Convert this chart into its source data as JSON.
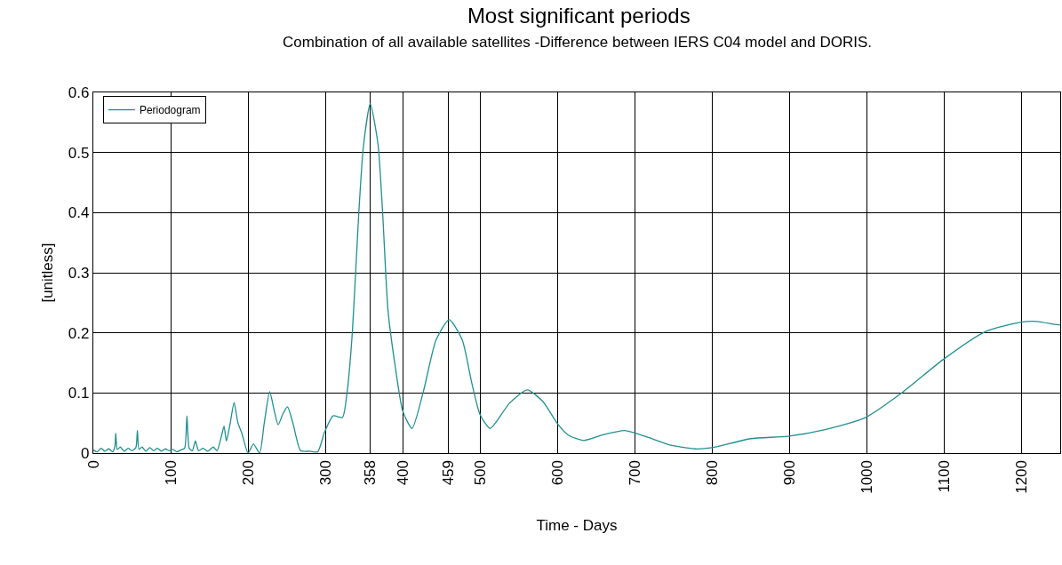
{
  "chart_data": {
    "type": "line",
    "title": "Most significant periods",
    "subtitle": "Combination of all available satellites -Difference between IERS C04 model and DORIS.",
    "xlabel": "Time - Days",
    "ylabel": "[unitless]",
    "x": [
      0,
      5,
      10,
      15,
      20,
      25,
      28,
      29,
      31,
      35,
      40,
      45,
      50,
      55,
      57,
      59,
      63,
      68,
      73,
      78,
      83,
      88,
      93,
      98,
      103,
      108,
      113,
      118,
      121,
      124,
      128,
      132,
      136,
      142,
      148,
      155,
      160,
      166,
      169,
      172,
      177,
      182,
      187,
      192,
      200,
      207,
      215,
      221,
      228,
      234,
      239,
      245,
      251,
      258,
      268,
      280,
      290,
      299,
      310,
      322,
      328,
      335,
      343,
      349,
      358,
      368,
      374,
      381,
      391,
      400,
      412,
      427,
      443,
      460,
      477,
      489,
      500,
      513,
      538,
      561,
      581,
      600,
      614,
      634,
      658,
      687,
      715,
      744,
      778,
      800,
      850,
      898,
      946,
      998,
      1047,
      1098,
      1153,
      1198,
      1220,
      1243,
      1250
    ],
    "series": [
      {
        "name": "Periodogram",
        "color": "#20908f",
        "values": [
          0.005,
          0.002,
          0.008,
          0.003,
          0.007,
          0.002,
          0.012,
          0.033,
          0.006,
          0.01,
          0.003,
          0.008,
          0.004,
          0.009,
          0.038,
          0.006,
          0.01,
          0.003,
          0.009,
          0.004,
          0.008,
          0.003,
          0.007,
          0.004,
          0.006,
          0.002,
          0.005,
          0.008,
          0.062,
          0.008,
          0.004,
          0.02,
          0.004,
          0.008,
          0.003,
          0.01,
          0.004,
          0.03,
          0.045,
          0.02,
          0.05,
          0.084,
          0.05,
          0.033,
          0.0,
          0.015,
          0.0,
          0.05,
          0.102,
          0.07,
          0.047,
          0.065,
          0.077,
          0.05,
          0.004,
          0.003,
          0.002,
          0.035,
          0.062,
          0.059,
          0.1,
          0.203,
          0.395,
          0.508,
          0.581,
          0.514,
          0.4,
          0.237,
          0.138,
          0.07,
          0.041,
          0.104,
          0.188,
          0.222,
          0.188,
          0.118,
          0.064,
          0.041,
          0.083,
          0.105,
          0.086,
          0.049,
          0.03,
          0.021,
          0.03,
          0.0375,
          0.027,
          0.014,
          0.007,
          0.009,
          0.024,
          0.028,
          0.039,
          0.059,
          0.102,
          0.155,
          0.202,
          0.2175,
          0.219,
          0.214,
          0.213
        ]
      }
    ],
    "xlim": [
      0,
      1250
    ],
    "xticks": [
      0,
      100,
      200,
      300,
      358,
      400,
      459,
      500,
      600,
      700,
      800,
      900,
      1000,
      1100,
      1200
    ],
    "ylim": [
      0,
      0.6
    ],
    "yticks": [
      0,
      0.1,
      0.2,
      0.3,
      0.4,
      0.5,
      0.6
    ],
    "grid": true,
    "legend": "top left"
  }
}
